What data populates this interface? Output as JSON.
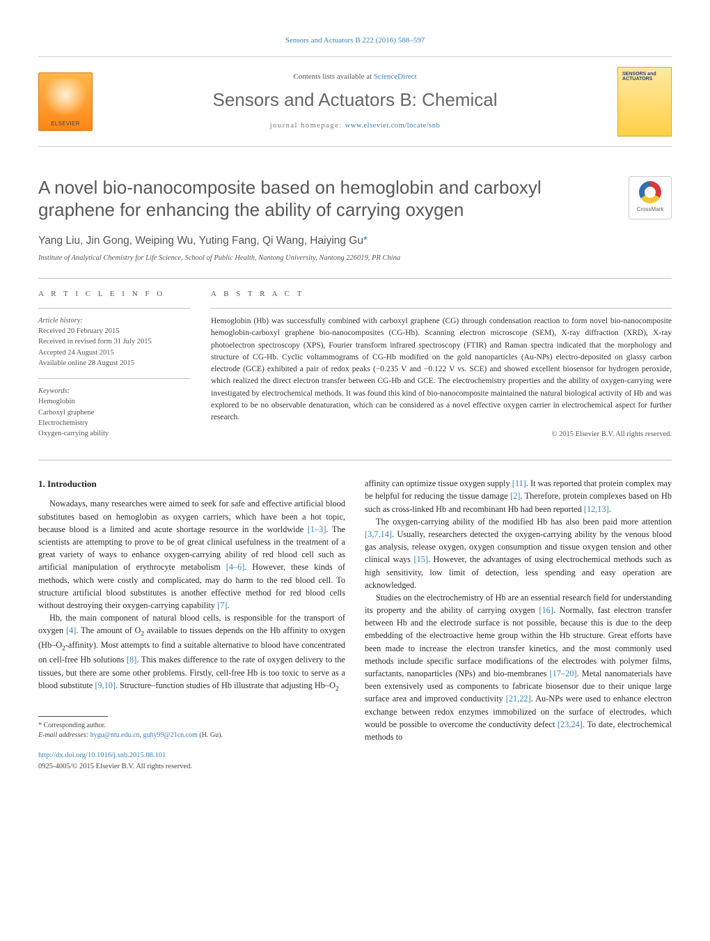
{
  "journal_ref": "Sensors and Actuators B 222 (2016) 588–597",
  "contents_line_prefix": "Contents lists available at ",
  "sciencedirect": "ScienceDirect",
  "journal_title": "Sensors and Actuators B: Chemical",
  "homepage_prefix": "journal homepage: ",
  "homepage_url": "www.elsevier.com/locate/snb",
  "elsevier_label": "ELSEVIER",
  "cover_label": "SENSORS and ACTUATORS",
  "crossmark_label": "CrossMark",
  "title": "A novel bio-nanocomposite based on hemoglobin and carboxyl graphene for enhancing the ability of carrying oxygen",
  "authors_line": "Yang Liu, Jin Gong, Weiping Wu, Yuting Fang, Qi Wang, Haiying Gu",
  "corr_mark": "*",
  "affiliation": "Institute of Analytical Chemistry for Life Science, School of Public Health, Nantong University, Nantong 226019, PR China",
  "article_info": {
    "heading": "A R T I C L E   I N F O",
    "history_h": "Article history:",
    "history": [
      "Received 20 February 2015",
      "Received in revised form 31 July 2015",
      "Accepted 24 August 2015",
      "Available online 28 August 2015"
    ],
    "keywords_h": "Keywords:",
    "keywords": [
      "Hemoglobin",
      "Carboxyl graphene",
      "Electrochemistry",
      "Oxygen-carrying ability"
    ]
  },
  "abstract": {
    "heading": "A B S T R A C T",
    "text": "Hemoglobin (Hb) was successfully combined with carboxyl graphene (CG) through condensation reaction to form novel bio-nanocomposite hemoglobin-carboxyl graphene bio-nanocomposites (CG-Hb). Scanning electron microscope (SEM), X-ray diffraction (XRD), X-ray photoelectron spectroscopy (XPS), Fourier transform infrared spectroscopy (FTIR) and Raman spectra indicated that the morphology and structure of CG-Hb. Cyclic voltammograms of CG-Hb modified on the gold nanoparticles (Au-NPs) electro-deposited on glassy carbon electrode (GCE) exhibited a pair of redox peaks (−0.235 V and −0.122 V vs. SCE) and showed excellent biosensor for hydrogen peroxide, which realized the direct electron transfer between CG-Hb and GCE. The electrochemistry properties and the ability of oxygen-carrying were investigated by electrochemical methods. It was found this kind of bio-nanocomposite maintained the natural biological activity of Hb and was explored to be no observable denaturation, which can be considered as a novel effective oxygen carrier in electrochemical aspect for further research."
  },
  "copyright_abs": "© 2015 Elsevier B.V. All rights reserved.",
  "intro_h": "1. Introduction",
  "left_col": {
    "p1a": "Nowadays, many researches were aimed to seek for safe and effective artificial blood substitutes based on hemoglobin as oxygen carriers, which have been a hot topic, because blood is a limited and acute shortage resource in the worldwide ",
    "p1_ref1": "[1–3]",
    "p1b": ". The scientists are attempting to prove to be of great clinical usefulness in the treatment of a great variety of ways to enhance oxygen-carrying ability of red blood cell such as artificial manipulation of erythrocyte metabolism ",
    "p1_ref2": "[4–6]",
    "p1c": ". However, these kinds of methods, which were costly and complicated, may do harm to the red blood cell. To structure artificial blood substitutes is another effective method for red blood cells without destroying their oxygen-carrying capability ",
    "p1_ref3": "[7]",
    "p1d": ".",
    "p2a": "Hb, the main component of natural blood cells, is responsible for the transport of oxygen ",
    "p2_ref1": "[4]",
    "p2b": ". The amount of O",
    "p2_sub": "2",
    "p2c": " available to tissues depends on the Hb affinity to oxygen (Hb–O",
    "p2c2": "-affinity). Most attempts to find a suitable alternative to blood have concentrated on cell-free Hb solutions ",
    "p2_ref2": "[8]",
    "p2d": ". This makes difference to the rate of oxygen delivery to the tissues, but there are some other problems. Firstly, cell-free Hb is too toxic to serve as a blood substitute ",
    "p2_ref3": "[9,10]",
    "p2e": ". Structure–function studies of Hb illustrate that adjusting Hb–O",
    "p2_sub3": "2"
  },
  "right_col": {
    "p1a": "affinity can optimize tissue oxygen supply ",
    "p1_ref1": "[11]",
    "p1b": ". It was reported that protein complex may be helpful for reducing the tissue damage ",
    "p1_ref2": "[2]",
    "p1c": ". Therefore, protein complexes based on Hb such as cross-linked Hb and recombinant Hb had been reported ",
    "p1_ref3": "[12,13]",
    "p1d": ".",
    "p2a": "The oxygen-carrying ability of the modified Hb has also been paid more attention ",
    "p2_ref1": "[3,7,14]",
    "p2b": ". Usually, researchers detected the oxygen-carrying ability by the venous blood gas analysis, release oxygen, oxygen consumption and tissue oxygen tension and other clinical ways ",
    "p2_ref2": "[15]",
    "p2c": ". However, the advantages of using electrochemical methods such as high sensitivity, low limit of detection, less spending and easy operation are acknowledged.",
    "p3a": "Studies on the electrochemistry of Hb are an essential research field for understanding its property and the ability of carrying oxygen ",
    "p3_ref1": "[16]",
    "p3b": ". Normally, fast electron transfer between Hb and the electrode surface is not possible, because this is due to the deep embedding of the electroactive heme group within the Hb structure. Great efforts have been made to increase the electron transfer kinetics, and the most commonly used methods include specific surface modifications of the electrodes with polymer films, surfactants, nanoparticles (NPs) and bio-membranes ",
    "p3_ref2": "[17–20]",
    "p3c": ". Metal nanomaterials have been extensively used as components to fabricate biosensor due to their unique large surface area and improved conductivity ",
    "p3_ref3": "[21,22]",
    "p3d": ". Au-NPs were used to enhance electron exchange between redox enzymes immobilized on the surface of electrodes, which would be possible to overcome the conductivity defect ",
    "p3_ref4": "[23,24]",
    "p3e": ". To date, electrochemical methods to"
  },
  "footer": {
    "corr_label": "* Corresponding author.",
    "email_label": "E-mail addresses: ",
    "email1": "hygu@ntu.edu.cn",
    "email_sep": ", ",
    "email2": "guhy99@21cn.com",
    "email_tail": " (H. Gu).",
    "doi": "http://dx.doi.org/10.1016/j.snb.2015.08.101",
    "rights": "0925-4005/© 2015 Elsevier B.V. All rights reserved."
  },
  "colors": {
    "link": "#3b7fb6",
    "heading_gray": "#585858",
    "text": "#2a2a2a"
  }
}
